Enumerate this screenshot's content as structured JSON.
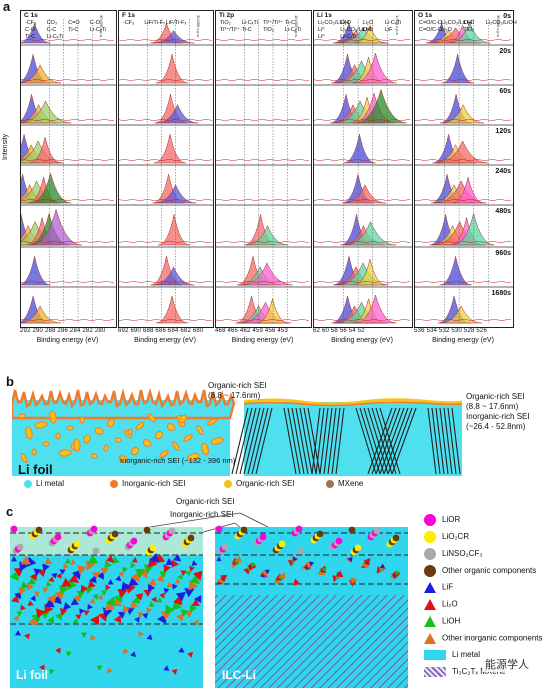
{
  "panel_a": {
    "letter": "a",
    "y_axis_label": "Intensity",
    "xlabel": "Binding energy (eV)",
    "panels": [
      {
        "title": "C 1s",
        "ticks": "292 290 288 286 284 282 280",
        "annotations": [
          "-CF₃",
          "CO₃",
          "C=O",
          "C-O",
          "C-O",
          "C-C",
          "Ti-C",
          "Li-CₓTi",
          "Ti-C",
          "Li-CₓTi",
          "30,000 c.p.s."
        ]
      },
      {
        "title": "F 1s",
        "ticks": "692 690 688 686 684 682 680",
        "annotations": [
          "-CF₃",
          "LiF/Ti-Fₓ",
          "LiF/Ti-Fₓ",
          "30,000 c.p.s."
        ]
      },
      {
        "title": "Ti 2p",
        "ticks": "468 465 462 459 456 453",
        "annotations": [
          "TiO₂",
          "Li-CₓTi",
          "Ti²⁺/Ti³⁺",
          "Ti-C",
          "Ti³⁺/Ti²⁺",
          "Ti-C",
          "TiO₂",
          "Li-CₓTi",
          "15,000 c.p.s."
        ]
      },
      {
        "title": "Li 1s",
        "ticks": "62 60 58 56 54 52",
        "annotations": [
          "Li₂CO₃/LiOH",
          "Li₂O",
          "Li₂O",
          "Li-CₓTi",
          "Li⁰",
          "Li₂CO₃/LiOH",
          "Li₂O",
          "LiF",
          "Li⁰",
          "Li-CₓTi",
          "1,000 c.p.s."
        ]
      },
      {
        "title": "O 1s",
        "ticks": "536 534 532 530 528 526",
        "annotations": [
          "C=O/C-O",
          "Li₂CO₃/LiOH",
          "Li₂O",
          "Li₂CO₃/LiOH",
          "C=O/C-O",
          "Li₂O",
          "TiO₂",
          "30,000 c.p.s."
        ]
      }
    ],
    "times": [
      "0s",
      "20s",
      "60s",
      "120s",
      "240s",
      "480s",
      "960s",
      "1680s"
    ]
  },
  "panel_b": {
    "letter": "b",
    "left_label": "Li foil",
    "left_organic": "Organic-rich SEI",
    "left_organic_range": "(8.8 ~ 17.6nm)",
    "left_inorganic": "Inorganic-rich SEI (~132 - 396 nm)",
    "right_organic": "Organic-rich SEI",
    "right_organic_range": "(8.8 ~ 17.6nm)",
    "right_inorganic": "Inorganic-rich SEI",
    "right_inorganic_range": "(~26.4 - 52.8nm)",
    "legend": [
      {
        "label": "Li metal",
        "color": "#4fe0f0"
      },
      {
        "label": "Inorganic-rich SEI",
        "color": "#f07a2a"
      },
      {
        "label": "Organic-rich SEI",
        "color": "#f6c21a"
      },
      {
        "label": "MXene",
        "color": "#9a7656"
      }
    ]
  },
  "panel_c": {
    "letter": "c",
    "organic_label": "Organic-rich SEI",
    "inorganic_label": "Inorganic-rich SEI",
    "left_label": "Li foil",
    "right_label": "ILC-Li",
    "legend": [
      {
        "label": "LiOR",
        "shape": "circle",
        "color": "#ff00d8"
      },
      {
        "label": "LiO₂CR",
        "shape": "circle",
        "color": "#ffee00"
      },
      {
        "label": "LiNSO₂CF₃",
        "shape": "circle",
        "color": "#a9a9a9"
      },
      {
        "label": "Other organic components",
        "shape": "circle",
        "color": "#6b3a10"
      },
      {
        "label": "LiF",
        "shape": "triangle",
        "color": "#1d1de0"
      },
      {
        "label": "Li₂O",
        "shape": "triangle",
        "color": "#e01010"
      },
      {
        "label": "LiOH",
        "shape": "triangle",
        "color": "#16c016"
      },
      {
        "label": "Other inorganic components",
        "shape": "triangle",
        "color": "#e07020"
      },
      {
        "label": "Li metal",
        "shape": "rect",
        "color": "#2fd6ee"
      },
      {
        "label": "Ti₃C₂Tₓ MXene",
        "shape": "hatch",
        "color": "#7a5aa6"
      }
    ]
  },
  "watermark": "能源学人"
}
